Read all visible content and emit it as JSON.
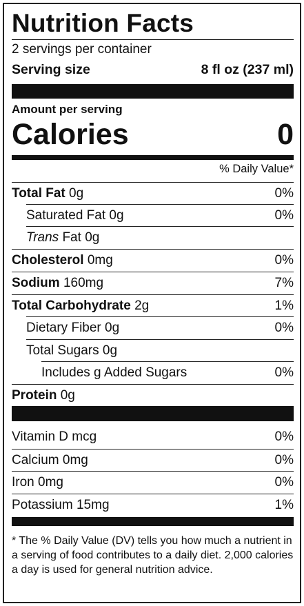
{
  "label": {
    "title": "Nutrition Facts",
    "servings_per_container": "2 servings per container",
    "serving_size_label": "Serving size",
    "serving_size_value": "8 fl oz (237 ml)",
    "amount_per_serving": "Amount per serving",
    "calories_label": "Calories",
    "calories_value": "0",
    "daily_value_header": "% Daily Value*",
    "nutrients": [
      {
        "name": "Total Fat",
        "amount": "0g",
        "dv": "0%"
      },
      {
        "name": "Saturated Fat",
        "amount": "0g",
        "dv": "0%"
      },
      {
        "name": "Trans",
        "name_suffix": "Fat",
        "amount": "0g",
        "dv": ""
      },
      {
        "name": "Cholesterol",
        "amount": "0mg",
        "dv": "0%"
      },
      {
        "name": "Sodium",
        "amount": "160mg",
        "dv": "7%"
      },
      {
        "name": "Total Carbohydrate",
        "amount": "2g",
        "dv": "1%"
      },
      {
        "name": "Dietary Fiber",
        "amount": "0g",
        "dv": "0%"
      },
      {
        "name": "Total Sugars",
        "amount": "0g",
        "dv": ""
      },
      {
        "name": "Includes g Added Sugars",
        "amount": "",
        "dv": "0%"
      },
      {
        "name": "Protein",
        "amount": "0g",
        "dv": ""
      }
    ],
    "vitamins": [
      {
        "name": "Vitamin D",
        "amount": "mcg",
        "dv": "0%"
      },
      {
        "name": "Calcium",
        "amount": "0mg",
        "dv": "0%"
      },
      {
        "name": "Iron",
        "amount": "0mg",
        "dv": "0%"
      },
      {
        "name": "Potassium",
        "amount": "15mg",
        "dv": "1%"
      }
    ],
    "footnote": "* The % Daily Value (DV) tells you how much a nutrient in a serving of food contributes to a daily diet. 2,000 calories a day is used for general nutrition advice."
  }
}
